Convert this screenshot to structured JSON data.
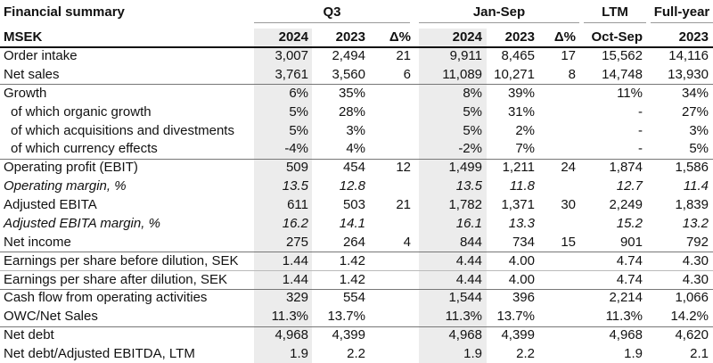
{
  "title": "Financial summary",
  "header_groups": [
    "Q3",
    "Jan-Sep",
    "LTM",
    "Full-year"
  ],
  "columns": [
    "MSEK",
    "2024",
    "2023",
    "Δ%",
    "2024",
    "2023",
    "Δ%",
    "Oct-Sep",
    "2023"
  ],
  "row_groups": [
    [
      [
        "Order intake",
        "3,007",
        "2,494",
        "21",
        "9,911",
        "8,465",
        "17",
        "15,562",
        "14,116"
      ],
      [
        "Net sales",
        "3,761",
        "3,560",
        "6",
        "11,089",
        "10,271",
        "8",
        "14,748",
        "13,930"
      ]
    ],
    [
      [
        "Growth",
        "6%",
        "35%",
        null,
        "8%",
        "39%",
        null,
        "11%",
        "34%"
      ],
      [
        "of which organic growth",
        "5%",
        "28%",
        null,
        "5%",
        "31%",
        null,
        "-",
        "27%"
      ],
      [
        "of which acquisitions and divestments",
        "5%",
        "3%",
        null,
        "5%",
        "2%",
        null,
        "-",
        "3%"
      ],
      [
        "of which currency effects",
        "-4%",
        "4%",
        null,
        "-2%",
        "7%",
        null,
        "-",
        "5%"
      ]
    ],
    [
      [
        "Operating profit (EBIT)",
        "509",
        "454",
        "12",
        "1,499",
        "1,211",
        "24",
        "1,874",
        "1,586"
      ],
      [
        "Operating margin, %",
        "13.5",
        "12.8",
        null,
        "13.5",
        "11.8",
        null,
        "12.7",
        "11.4"
      ],
      [
        "Adjusted EBITA",
        "611",
        "503",
        "21",
        "1,782",
        "1,371",
        "30",
        "2,249",
        "1,839"
      ],
      [
        "Adjusted EBITA margin, %",
        "16.2",
        "14.1",
        null,
        "16.1",
        "13.3",
        null,
        "15.2",
        "13.2"
      ],
      [
        "Net income",
        "275",
        "264",
        "4",
        "844",
        "734",
        "15",
        "901",
        "792"
      ]
    ],
    [
      [
        "Earnings per share before dilution, SEK",
        "1.44",
        "1.42",
        null,
        "4.44",
        "4.00",
        null,
        "4.74",
        "4.30"
      ],
      [
        "Earnings per share after dilution, SEK",
        "1.44",
        "1.42",
        null,
        "4.44",
        "4.00",
        null,
        "4.74",
        "4.30"
      ]
    ],
    [
      [
        "Cash flow from operating activities",
        "329",
        "554",
        null,
        "1,544",
        "396",
        null,
        "2,214",
        "1,066"
      ],
      [
        "OWC/Net Sales",
        "11.3%",
        "13.7%",
        null,
        "11.3%",
        "13.7%",
        null,
        "11.3%",
        "14.2%"
      ]
    ],
    [
      [
        "Net debt",
        "4,968",
        "4,399",
        null,
        "4,968",
        "4,399",
        null,
        "4,968",
        "4,620"
      ],
      [
        "Net debt/Adjusted EBITDA, LTM",
        "1.9",
        "2.2",
        null,
        "1.9",
        "2.2",
        null,
        "1.9",
        "2.1"
      ]
    ]
  ]
}
